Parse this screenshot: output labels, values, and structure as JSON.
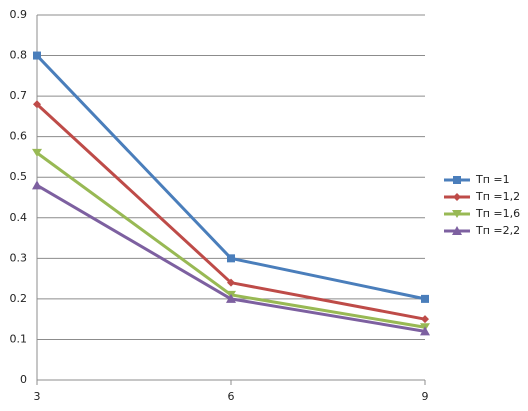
{
  "chart_data": {
    "type": "line",
    "x": [
      3,
      6,
      9
    ],
    "xlim": [
      3,
      9
    ],
    "xticks": [
      3,
      6,
      9
    ],
    "ylim": [
      0,
      0.9
    ],
    "yticks": [
      0,
      0.1,
      0.2,
      0.3,
      0.4,
      0.5,
      0.6,
      0.7,
      0.8,
      0.9
    ],
    "grid": true,
    "legend": "right",
    "series": [
      {
        "name": "Тп =1",
        "color": "#4a7ebb",
        "marker": "square",
        "values": [
          0.8,
          0.3,
          0.2
        ]
      },
      {
        "name": "Тп =1,2",
        "color": "#be4b48",
        "marker": "diamond",
        "values": [
          0.68,
          0.24,
          0.15
        ]
      },
      {
        "name": "Тп =1,6",
        "color": "#98b954",
        "marker": "triangle-down",
        "values": [
          0.56,
          0.21,
          0.13
        ]
      },
      {
        "name": "Тп =2,2",
        "color": "#7d60a0",
        "marker": "triangle",
        "values": [
          0.48,
          0.2,
          0.12
        ]
      }
    ]
  }
}
